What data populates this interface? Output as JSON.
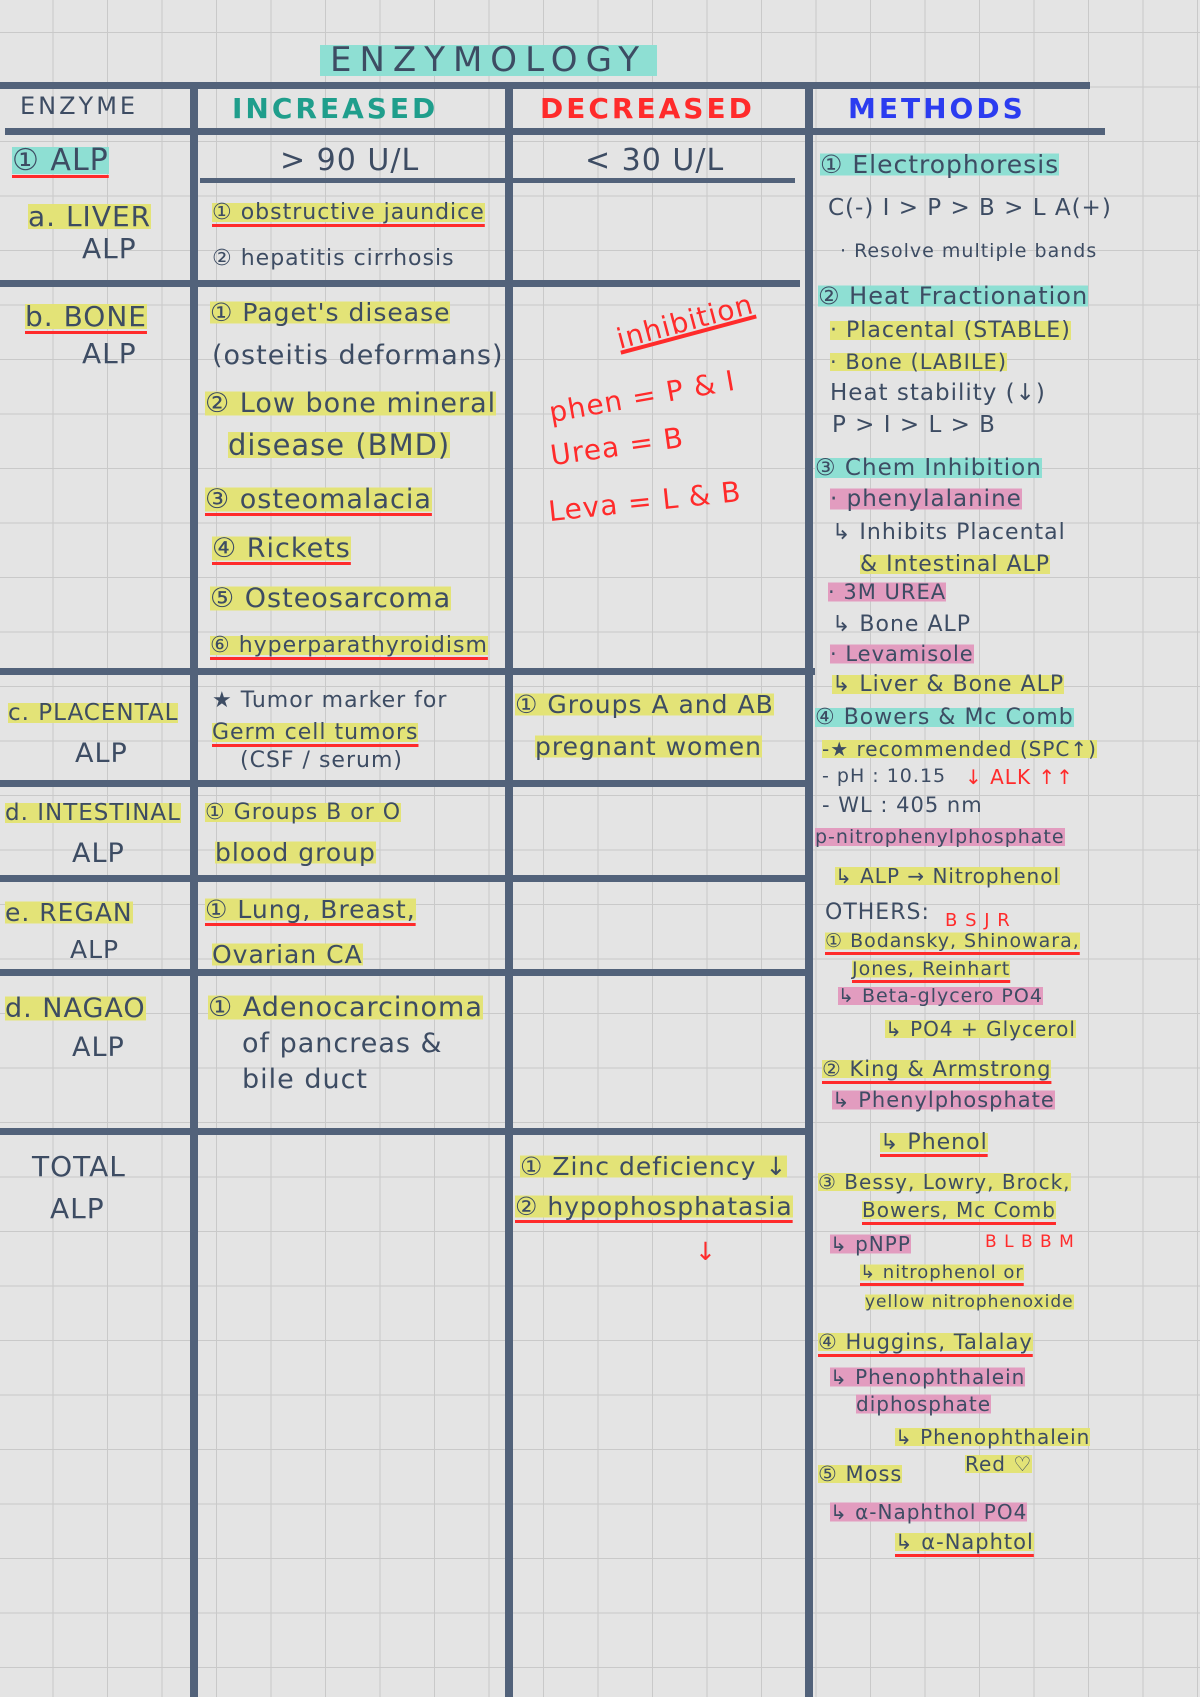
{
  "title": "ENZYMOLOGY",
  "headers": {
    "enzyme": "ENZYME",
    "increased": "INCREASED",
    "decreased": "DECREASED",
    "methods": "METHODS"
  },
  "colors": {
    "increased": "#1f9e8c",
    "decreased": "#ff2b2b",
    "methods": "#2b3cf0",
    "ink": "#3d4c63",
    "highlight_yellow": "#e3e377",
    "highlight_cyan": "#8edfd3",
    "highlight_pink": "#e29cbf",
    "grid_lines": "#52627a"
  },
  "alp": {
    "name": "① ALP",
    "increased": "> 90 U/L",
    "decreased": "< 30 U/L"
  },
  "liver": {
    "name1": "a. LIVER",
    "name2": "ALP",
    "inc": [
      "① obstructive jaundice",
      "② hepatitis cirrhosis"
    ]
  },
  "bone": {
    "name1": "b. BONE",
    "name2": "ALP",
    "inc": [
      "① Paget's disease",
      "(osteitis deformans)",
      "② Low bone mineral",
      "disease (BMD)",
      "③ osteomalacia",
      "④ Rickets",
      "⑤ Osteosarcoma",
      "⑥ hyperparathyroidism"
    ],
    "dec": [
      "inhibition",
      "phen = P & I",
      "Urea = B",
      "Leva = L & B"
    ]
  },
  "placental": {
    "name1": "c. PLACENTAL",
    "name2": "ALP",
    "inc": [
      "★ Tumor marker for",
      "Germ cell tumors",
      "(CSF / serum)"
    ],
    "dec": [
      "① Groups A and AB",
      "pregnant women"
    ]
  },
  "intestinal": {
    "name1": "d. INTESTINAL",
    "name2": "ALP",
    "inc": [
      "① Groups B or O",
      "blood group"
    ]
  },
  "regan": {
    "name1": "e. REGAN",
    "name2": "ALP",
    "inc": [
      "① Lung, Breast,",
      "Ovarian CA"
    ]
  },
  "nagao": {
    "name1": "d. NAGAO",
    "name2": "ALP",
    "inc": [
      "① Adenocarcinoma",
      "of pancreas &",
      "bile duct"
    ]
  },
  "total": {
    "name1": "TOTAL",
    "name2": "ALP",
    "dec": [
      "① Zinc deficiency ↓",
      "② hypophosphatasia",
      "↓"
    ]
  },
  "methods": [
    "① Electrophoresis",
    "C(-) I > P > B > L A(+)",
    "· Resolve multiple bands",
    "② Heat Fractionation",
    "· Placental (STABLE)",
    "· Bone (LABILE)",
    "Heat stability (↓)",
    "P > I > L > B",
    "③ Chem Inhibition",
    "· phenylalanine",
    "↳ Inhibits Placental",
    "& Intestinal ALP",
    "· 3M UREA",
    "↳ Bone ALP",
    "· Levamisole",
    "↳ Liver & Bone ALP",
    "④ Bowers & Mc Comb",
    "-★ recommended (SPC↑)",
    "- pH : 10.15",
    "↓ ALK ↑↑",
    "- WL : 405 nm",
    "p-nitrophenylphosphate",
    "↳ ALP → Nitrophenol",
    "OTHERS:",
    "B S J R",
    "① Bodansky, Shinowara,",
    "Jones, Reinhart",
    "↳ Beta-glycero PO4",
    "↳ PO4 + Glycerol",
    "② King & Armstrong",
    "↳ Phenylphosphate",
    "↳ Phenol",
    "③ Bessy, Lowry, Brock,",
    "Bowers, Mc Comb",
    "↳ pNPP",
    "B L B B M",
    "↳ nitrophenol or",
    "yellow nitrophenoxide",
    "④ Huggins, Talalay",
    "↳ Phenophthalein",
    "diphosphate",
    "↳ Phenophthalein",
    "Red ♡",
    "⑤ Moss",
    "↳ α-Naphthol PO4",
    "↳ α-Naphtol"
  ]
}
